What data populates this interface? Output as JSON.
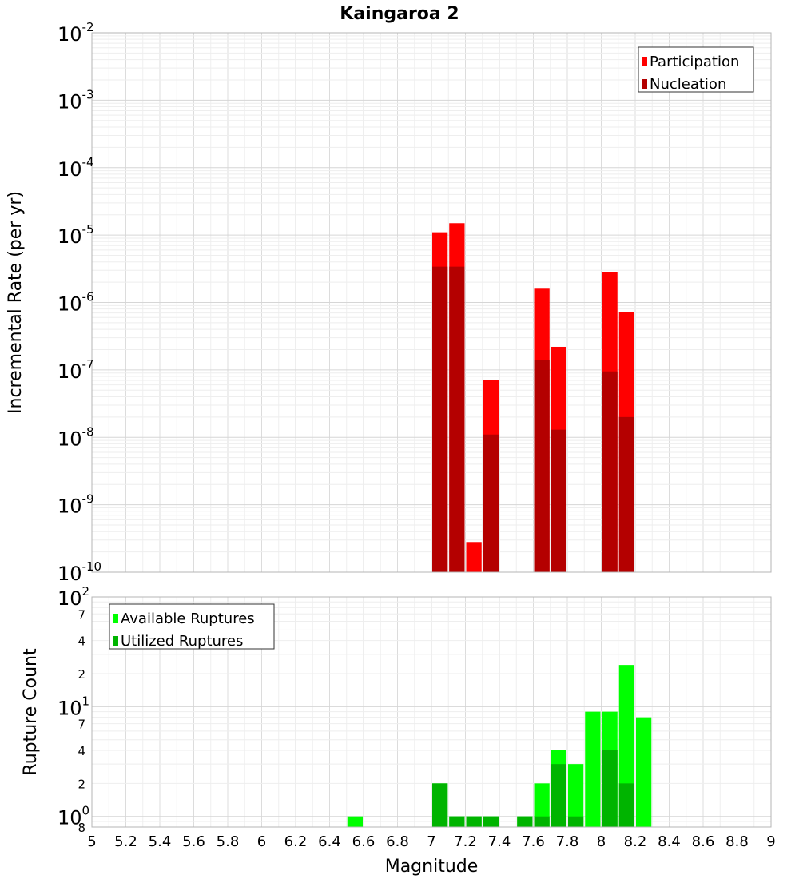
{
  "chart_data": [
    {
      "type": "bar",
      "title": "Kaingaroa 2",
      "xlabel": "",
      "ylabel": "Incremental Rate (per yr)",
      "yscale": "log",
      "ylim": [
        1e-10,
        0.01
      ],
      "xlim": [
        5,
        9
      ],
      "grid": true,
      "legend_position": "top-right",
      "y_ticks": [
        {
          "base": "10",
          "exp": "-2"
        },
        {
          "base": "10",
          "exp": "-3"
        },
        {
          "base": "10",
          "exp": "-4"
        },
        {
          "base": "10",
          "exp": "-5"
        },
        {
          "base": "10",
          "exp": "-6"
        },
        {
          "base": "10",
          "exp": "-7"
        },
        {
          "base": "10",
          "exp": "-8"
        },
        {
          "base": "10",
          "exp": "-9"
        },
        {
          "base": "10",
          "exp": "-10"
        }
      ],
      "bin_width": 0.1,
      "series": [
        {
          "name": "Participation",
          "color": "#ff0000",
          "x": [
            7.05,
            7.15,
            7.25,
            7.35,
            7.65,
            7.75,
            8.05,
            8.15
          ],
          "values": [
            1.1e-05,
            1.5e-05,
            2.8e-10,
            7e-08,
            1.6e-06,
            2.2e-07,
            2.8e-06,
            7.2e-07
          ]
        },
        {
          "name": "Nucleation",
          "color": "#b40000",
          "x": [
            7.05,
            7.15,
            7.35,
            7.65,
            7.75,
            8.05,
            8.15
          ],
          "values": [
            3.4e-06,
            3.4e-06,
            1.1e-08,
            1.4e-07,
            1.3e-08,
            9.5e-08,
            2e-08
          ]
        }
      ]
    },
    {
      "type": "bar",
      "title": "",
      "xlabel": "Magnitude",
      "ylabel": "Rupture Count",
      "yscale": "log",
      "ylim": [
        0.8,
        100
      ],
      "xlim": [
        5,
        9
      ],
      "grid": true,
      "legend_position": "top-left",
      "x_tick_labels": [
        "5",
        "5.2",
        "5.4",
        "5.6",
        "5.8",
        "6",
        "6.2",
        "6.4",
        "6.6",
        "6.8",
        "7",
        "7.2",
        "7.4",
        "7.6",
        "7.8",
        "8",
        "8.2",
        "8.4",
        "8.6",
        "8.8",
        "9"
      ],
      "y_major_ticks": [
        {
          "base": "10",
          "exp": "2",
          "value": 100
        },
        {
          "base": "10",
          "exp": "1",
          "value": 10
        },
        {
          "base": "10",
          "exp": "0",
          "value": 1
        }
      ],
      "y_minor_ticks": [
        {
          "label": "7",
          "value": 70
        },
        {
          "label": "4",
          "value": 40
        },
        {
          "label": "2",
          "value": 20
        },
        {
          "label": "7",
          "value": 7
        },
        {
          "label": "4",
          "value": 4
        },
        {
          "label": "2",
          "value": 2
        },
        {
          "label": "8",
          "value": 0.8
        }
      ],
      "bin_width": 0.1,
      "series": [
        {
          "name": "Available Ruptures",
          "color": "#00ff00",
          "x": [
            6.55,
            7.05,
            7.15,
            7.25,
            7.35,
            7.55,
            7.65,
            7.75,
            7.85,
            7.95,
            8.05,
            8.15,
            8.25
          ],
          "values": [
            1,
            2,
            1,
            1,
            1,
            1,
            2,
            4,
            3,
            9,
            9,
            24,
            8
          ]
        },
        {
          "name": "Utilized Ruptures",
          "color": "#00b400",
          "x": [
            7.05,
            7.15,
            7.25,
            7.35,
            7.55,
            7.65,
            7.75,
            7.85,
            8.05,
            8.15
          ],
          "values": [
            2,
            1,
            1,
            1,
            1,
            1,
            3,
            1,
            4,
            2
          ]
        }
      ]
    }
  ]
}
